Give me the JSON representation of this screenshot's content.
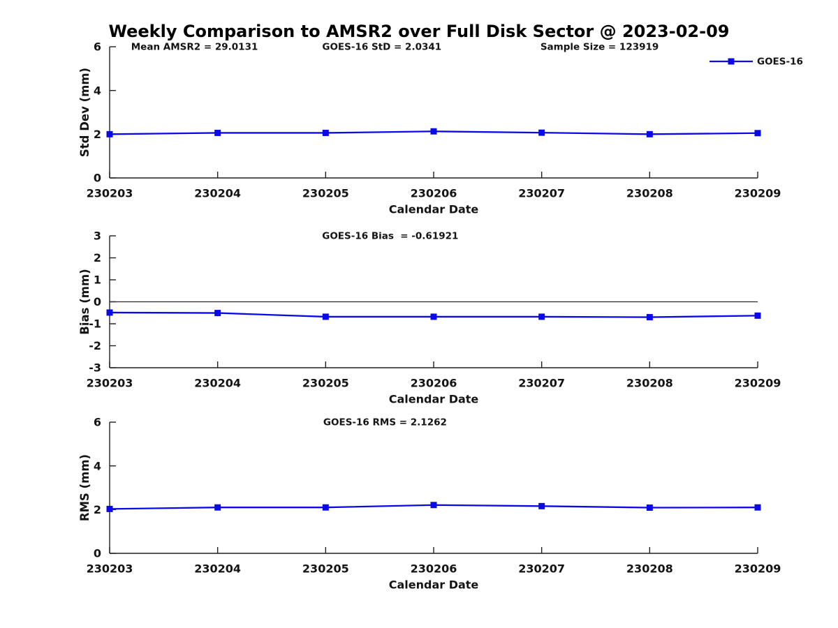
{
  "figure": {
    "title": "Weekly Comparison to AMSR2 over Full Disk Sector @ 2023-02-09"
  },
  "colors": {
    "line": "#0a0ae8",
    "axis": "#1f1f1f",
    "text": "#141414",
    "zero_line": "#2a2a2a"
  },
  "chart_data": [
    {
      "type": "line",
      "title": "",
      "ylabel": "Std Dev (mm)",
      "xlabel": "Calendar Date",
      "ylim": [
        0,
        6
      ],
      "yticks": [
        0,
        2,
        4,
        6
      ],
      "grid": false,
      "zero_line": false,
      "categories": [
        "230203",
        "230204",
        "230205",
        "230206",
        "230207",
        "230208",
        "230209"
      ],
      "series": [
        {
          "name": "GOES-16",
          "marker": "square",
          "values": [
            2.0,
            2.06,
            2.06,
            2.13,
            2.07,
            2.0,
            2.05
          ]
        }
      ],
      "annotations": [
        {
          "text": "Mean AMSR2 = 29.0131",
          "xfrac": 0.131
        },
        {
          "text": "GOES-16 StD = 2.0341",
          "xfrac": 0.42
        },
        {
          "text": "Sample Size = 123919",
          "xfrac": 0.756
        }
      ],
      "legend": {
        "show": true,
        "position": "top-right",
        "label": "GOES-16"
      }
    },
    {
      "type": "line",
      "title": "",
      "ylabel": "Bias (mm)",
      "xlabel": "Calendar Date",
      "ylim": [
        -3,
        3
      ],
      "yticks": [
        -3,
        -2,
        -1,
        0,
        1,
        2,
        3
      ],
      "grid": false,
      "zero_line": true,
      "categories": [
        "230203",
        "230204",
        "230205",
        "230206",
        "230207",
        "230208",
        "230209"
      ],
      "series": [
        {
          "name": "GOES-16",
          "marker": "square",
          "values": [
            -0.49,
            -0.51,
            -0.68,
            -0.68,
            -0.68,
            -0.7,
            -0.63
          ]
        }
      ],
      "annotations": [
        {
          "text": "GOES-16 Bias  = -0.61921",
          "xfrac": 0.433
        }
      ],
      "legend": {
        "show": false
      }
    },
    {
      "type": "line",
      "title": "",
      "ylabel": "RMS (mm)",
      "xlabel": "Calendar Date",
      "ylim": [
        0,
        6
      ],
      "yticks": [
        0,
        2,
        4,
        6
      ],
      "grid": false,
      "zero_line": false,
      "categories": [
        "230203",
        "230204",
        "230205",
        "230206",
        "230207",
        "230208",
        "230209"
      ],
      "series": [
        {
          "name": "GOES-16",
          "marker": "square",
          "values": [
            2.03,
            2.1,
            2.1,
            2.21,
            2.16,
            2.09,
            2.1
          ]
        }
      ],
      "annotations": [
        {
          "text": "GOES-16 RMS = 2.1262",
          "xfrac": 0.425
        }
      ],
      "legend": {
        "show": false
      }
    }
  ]
}
